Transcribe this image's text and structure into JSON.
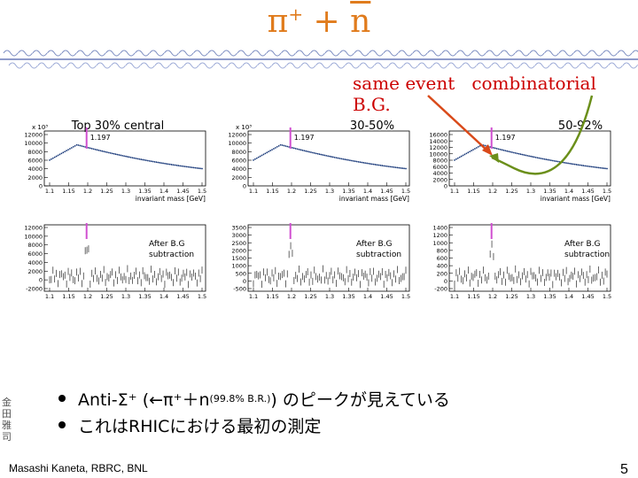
{
  "title": {
    "main": "π",
    "sup": "+",
    "plus": " + ",
    "bar": "n"
  },
  "labels": {
    "same_event": "same event",
    "combinatorial": "combinatorial B.G."
  },
  "panels": [
    {
      "title": "Top 30% central",
      "scale": "x 10³",
      "peak": "1.197",
      "yticks_top": [
        "12000",
        "10000",
        "8000",
        "6000",
        "4000",
        "2000",
        "0"
      ],
      "yticks_bottom": [
        "12000",
        "10000",
        "8000",
        "6000",
        "4000",
        "2000",
        "0",
        "-2000"
      ]
    },
    {
      "title": "30-50%",
      "scale": "x 10³",
      "peak": "1.197",
      "yticks_top": [
        "12000",
        "10000",
        "8000",
        "6000",
        "4000",
        "2000",
        "0"
      ],
      "yticks_bottom": [
        "3500",
        "3000",
        "2500",
        "2000",
        "1500",
        "1000",
        "500",
        "0",
        "-500"
      ]
    },
    {
      "title": "50-92%",
      "scale": "",
      "peak": "1.197",
      "yticks_top": [
        "16000",
        "14000",
        "12000",
        "10000",
        "8000",
        "6000",
        "4000",
        "2000",
        "0"
      ],
      "yticks_bottom": [
        "1400",
        "1200",
        "1000",
        "800",
        "600",
        "400",
        "200",
        "0",
        "-200"
      ]
    }
  ],
  "xticks": [
    "1.1",
    "1.15",
    "1.2",
    "1.25",
    "1.3",
    "1.35",
    "1.4",
    "1.45",
    "1.5"
  ],
  "xaxis_label": "invariant mass [GeV]",
  "after_bg": [
    "After B.G",
    "subtraction"
  ],
  "bullets": {
    "line1_a": "Anti-Σ⁺ (←π⁺＋n ",
    "line1_small": "(99.8% B.R.)",
    "line1_b": ") のピークが見えている",
    "line2": "これはRHICにおける最初の測定"
  },
  "footer": "Masashi Kaneta, RBRC, BNL",
  "page_number": "5",
  "seal": "金田雅司",
  "colors": {
    "title": "#e07b1c",
    "label": "#cc0000",
    "arrow_red": "#d94a1a",
    "arrow_green": "#6b8f1a",
    "marker": "#d04fd0",
    "curve": "#1a3a7a"
  }
}
